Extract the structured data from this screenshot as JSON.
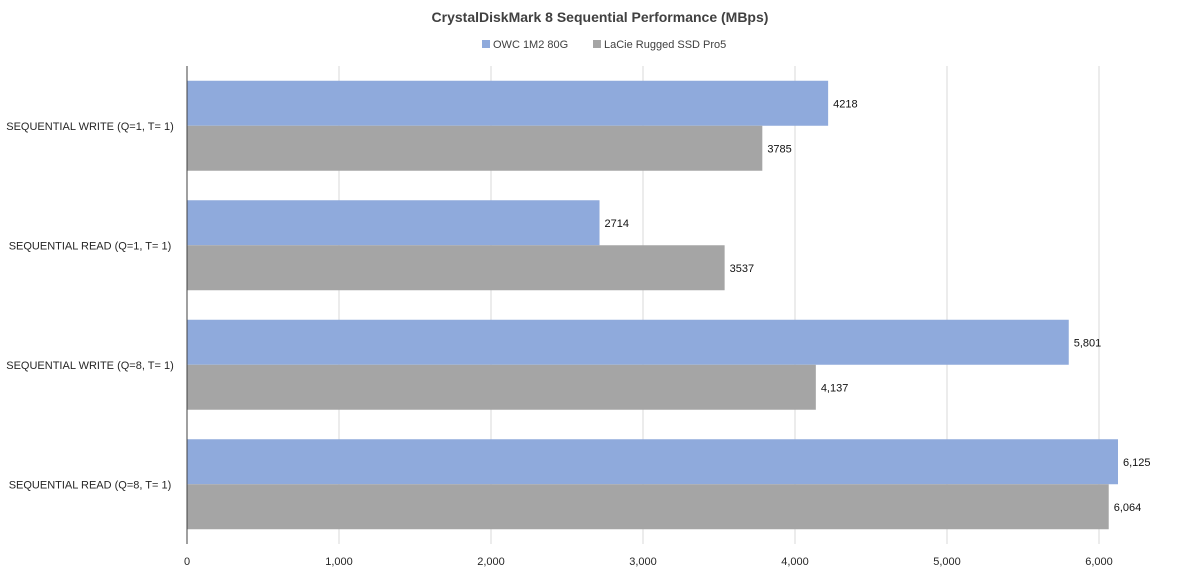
{
  "chart_data": {
    "type": "bar",
    "orientation": "horizontal",
    "title": "CrystalDiskMark 8 Sequential Performance (MBps)",
    "categories": [
      "SEQUENTIAL WRITE (Q=1, T= 1)",
      "SEQUENTIAL READ (Q=1, T= 1)",
      "SEQUENTIAL WRITE (Q=8, T= 1)",
      "SEQUENTIAL READ (Q=8, T= 1)"
    ],
    "series": [
      {
        "name": "OWC 1M2 80G",
        "color": "#8faadc",
        "values": [
          4218,
          2714,
          5801,
          6125
        ],
        "labels": [
          "4218",
          "2714",
          "5,801",
          "6,125"
        ]
      },
      {
        "name": "LaCie Rugged SSD Pro5",
        "color": "#a5a5a5",
        "values": [
          3785,
          3537,
          4137,
          6064
        ],
        "labels": [
          "3785",
          "3537",
          "4,137",
          "6,064"
        ]
      }
    ],
    "xlim": [
      0,
      6000
    ],
    "xticks": [
      0,
      1000,
      2000,
      3000,
      4000,
      5000,
      6000
    ],
    "xtick_labels": [
      "0",
      "1,000",
      "2,000",
      "3,000",
      "4,000",
      "5,000",
      "6,000"
    ],
    "grid": true,
    "legend": "top-center",
    "xlabel": "",
    "ylabel": ""
  }
}
